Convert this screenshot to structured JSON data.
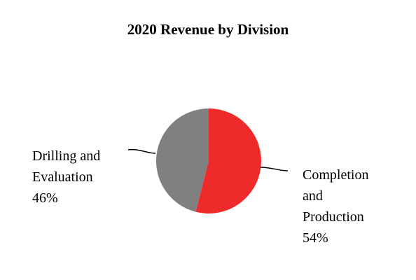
{
  "chart_data": {
    "type": "pie",
    "title": "2020 Revenue by Division",
    "slices": [
      {
        "lines": [
          "Completion",
          "and",
          "Production",
          "54%"
        ],
        "value": 54,
        "color": "#ee2a2a"
      },
      {
        "lines": [
          "Drilling and",
          "Evaluation",
          "46%"
        ],
        "value": 46,
        "color": "#808080"
      }
    ]
  }
}
